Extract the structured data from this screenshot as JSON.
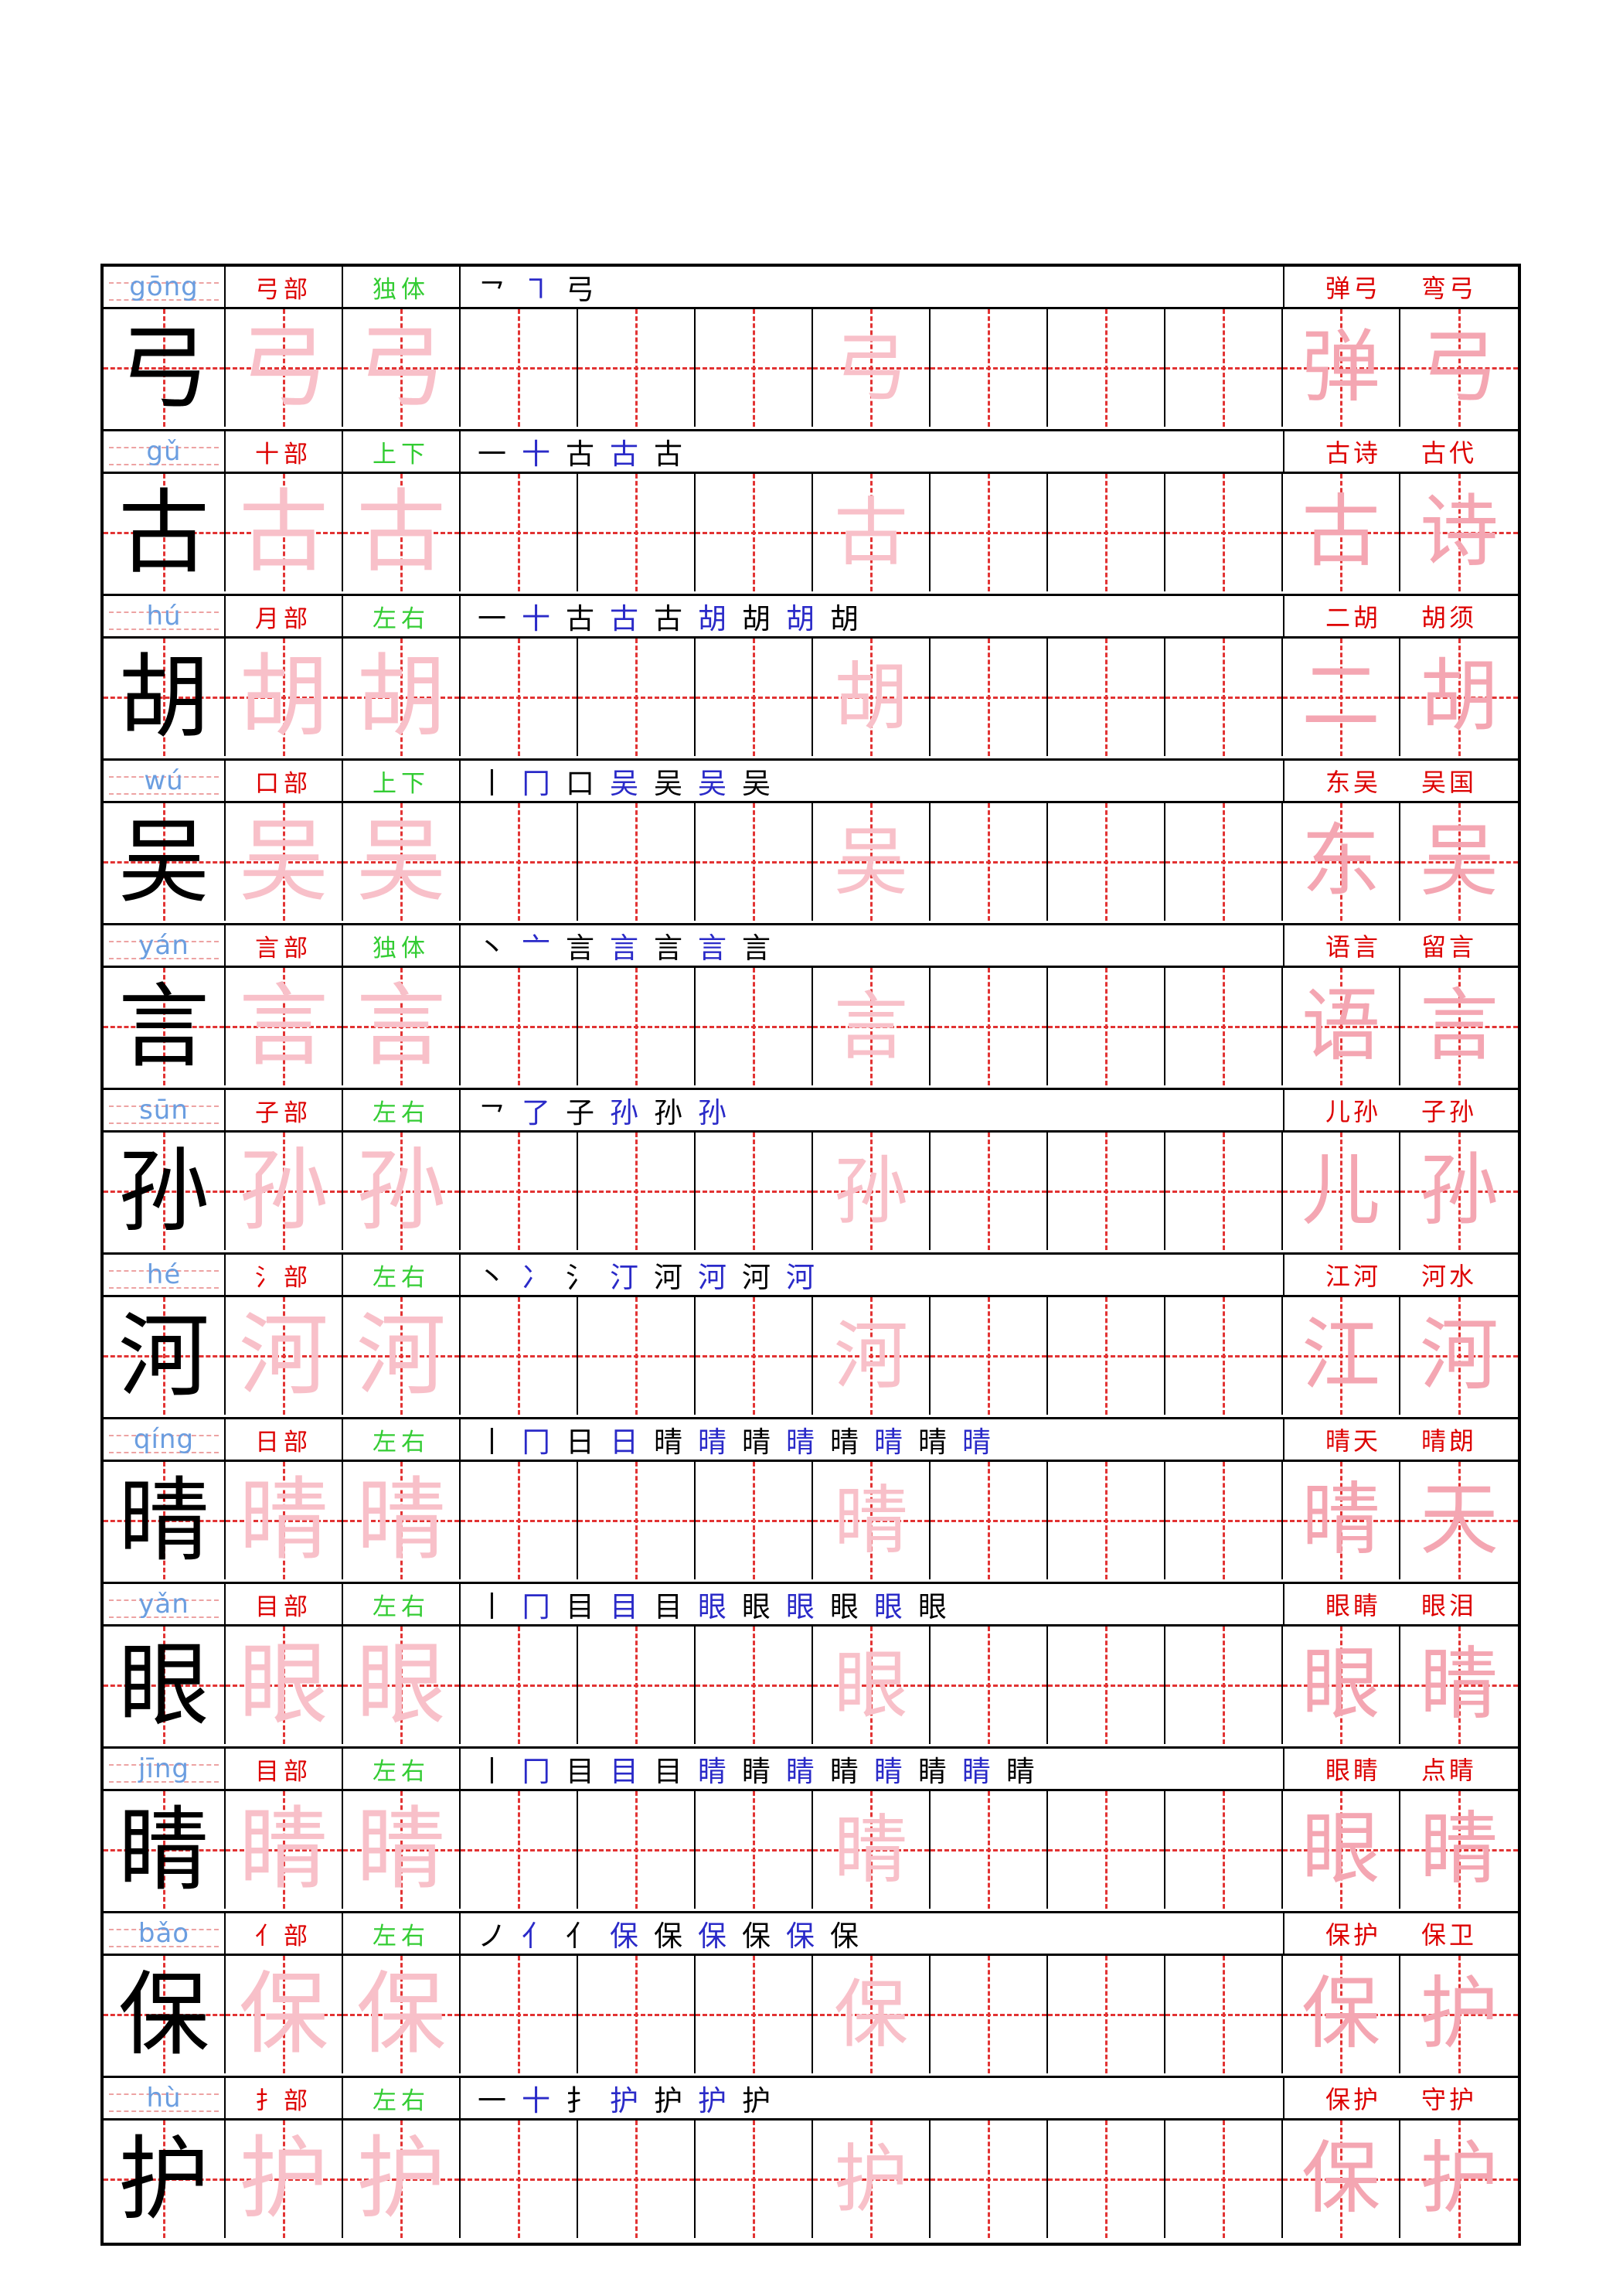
{
  "sheet_type": "chinese-character-practice-copybook",
  "colors": {
    "pinyin_blue": "#6b9ee0",
    "radical_red": "#dd0000",
    "structure_green": "#33cc33",
    "example_word_red": "#dd0000",
    "stroke_black": "#000000",
    "stroke_blue": "#2a2ac8",
    "trace_pink": "#f8c0c9",
    "word_trace_pink": "#f4a6b2",
    "guide_dash_red": "#e23333",
    "pinyin_line_pink": "#eda3a3",
    "model_char_black": "#000000",
    "border_black": "#000000"
  },
  "grid": {
    "practice_cells_per_row": 11,
    "trace_cells": [
      1,
      2
    ],
    "middle_trace_cell": 6,
    "word_trace_cells": [
      10,
      11
    ]
  },
  "rows": [
    {
      "char": "弓",
      "pinyin": "gōng",
      "radical": "弓部",
      "structure": "独体",
      "strokes": [
        "㇖",
        "㇕",
        "弓"
      ],
      "words": [
        "弹弓",
        "弯弓"
      ],
      "trace_word": [
        "弹",
        "弓"
      ]
    },
    {
      "char": "古",
      "pinyin": "gǔ",
      "radical": "十部",
      "structure": "上下",
      "strokes": [
        "一",
        "十",
        "古",
        "古",
        "古"
      ],
      "words": [
        "古诗",
        "古代"
      ],
      "trace_word": [
        "古",
        "诗"
      ]
    },
    {
      "char": "胡",
      "pinyin": "hú",
      "radical": "月部",
      "structure": "左右",
      "strokes": [
        "一",
        "十",
        "古",
        "古",
        "古",
        "胡",
        "胡",
        "胡",
        "胡"
      ],
      "words": [
        "二胡",
        "胡须"
      ],
      "trace_word": [
        "二",
        "胡"
      ]
    },
    {
      "char": "吴",
      "pinyin": "wú",
      "radical": "口部",
      "structure": "上下",
      "strokes": [
        "丨",
        "冂",
        "口",
        "吴",
        "吴",
        "吴",
        "吴"
      ],
      "words": [
        "东吴",
        "吴国"
      ],
      "trace_word": [
        "东",
        "吴"
      ]
    },
    {
      "char": "言",
      "pinyin": "yán",
      "radical": "言部",
      "structure": "独体",
      "strokes": [
        "丶",
        "亠",
        "言",
        "言",
        "言",
        "言",
        "言"
      ],
      "words": [
        "语言",
        "留言"
      ],
      "trace_word": [
        "语",
        "言"
      ]
    },
    {
      "char": "孙",
      "pinyin": "sūn",
      "radical": "子部",
      "structure": "左右",
      "strokes": [
        "㇖",
        "了",
        "子",
        "孙",
        "孙",
        "孙"
      ],
      "words": [
        "儿孙",
        "子孙"
      ],
      "trace_word": [
        "儿",
        "孙"
      ]
    },
    {
      "char": "河",
      "pinyin": "hé",
      "radical": "氵部",
      "structure": "左右",
      "strokes": [
        "丶",
        "冫",
        "氵",
        "汀",
        "河",
        "河",
        "河",
        "河"
      ],
      "words": [
        "江河",
        "河水"
      ],
      "trace_word": [
        "江",
        "河"
      ]
    },
    {
      "char": "晴",
      "pinyin": "qíng",
      "radical": "日部",
      "structure": "左右",
      "strokes": [
        "丨",
        "冂",
        "日",
        "日",
        "晴",
        "晴",
        "晴",
        "晴",
        "晴",
        "晴",
        "晴",
        "晴"
      ],
      "words": [
        "晴天",
        "晴朗"
      ],
      "trace_word": [
        "晴",
        "天"
      ]
    },
    {
      "char": "眼",
      "pinyin": "yǎn",
      "radical": "目部",
      "structure": "左右",
      "strokes": [
        "丨",
        "冂",
        "目",
        "目",
        "目",
        "眼",
        "眼",
        "眼",
        "眼",
        "眼",
        "眼"
      ],
      "words": [
        "眼睛",
        "眼泪"
      ],
      "trace_word": [
        "眼",
        "睛"
      ]
    },
    {
      "char": "睛",
      "pinyin": "jīng",
      "radical": "目部",
      "structure": "左右",
      "strokes": [
        "丨",
        "冂",
        "目",
        "目",
        "目",
        "睛",
        "睛",
        "睛",
        "睛",
        "睛",
        "睛",
        "睛",
        "睛"
      ],
      "words": [
        "眼睛",
        "点睛"
      ],
      "trace_word": [
        "眼",
        "睛"
      ]
    },
    {
      "char": "保",
      "pinyin": "bǎo",
      "radical": "亻部",
      "structure": "左右",
      "strokes": [
        "ノ",
        "亻",
        "亻",
        "保",
        "保",
        "保",
        "保",
        "保",
        "保"
      ],
      "words": [
        "保护",
        "保卫"
      ],
      "trace_word": [
        "保",
        "护"
      ]
    },
    {
      "char": "护",
      "pinyin": "hù",
      "radical": "扌部",
      "structure": "左右",
      "strokes": [
        "一",
        "十",
        "扌",
        "护",
        "护",
        "护",
        "护"
      ],
      "words": [
        "保护",
        "守护"
      ],
      "trace_word": [
        "保",
        "护"
      ]
    }
  ]
}
